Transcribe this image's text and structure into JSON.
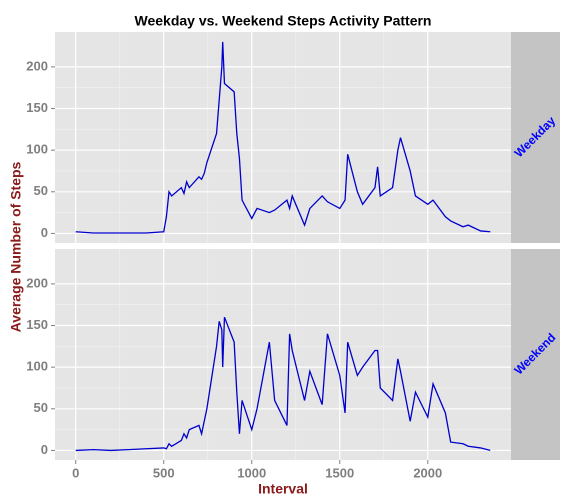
{
  "chart_data": {
    "type": "line",
    "title": "Weekday vs. Weekend Steps Activity Pattern",
    "xlabel": "Interval",
    "ylabel": "Average Number of Steps",
    "x": [
      0,
      100,
      200,
      300,
      400,
      500,
      515,
      530,
      545,
      600,
      615,
      630,
      645,
      700,
      715,
      730,
      745,
      800,
      815,
      830,
      835,
      845,
      900,
      915,
      930,
      945,
      1000,
      1030,
      1100,
      1130,
      1200,
      1215,
      1230,
      1300,
      1330,
      1400,
      1430,
      1500,
      1530,
      1545,
      1600,
      1630,
      1700,
      1715,
      1730,
      1800,
      1830,
      1845,
      1900,
      1930,
      2000,
      2030,
      2100,
      2130,
      2200,
      2230,
      2300,
      2355
    ],
    "series": [
      {
        "name": "Weekday",
        "color": "#0000cd",
        "values": [
          2,
          0.5,
          0.5,
          0.5,
          0.5,
          2,
          20,
          50,
          45,
          55,
          48,
          62,
          55,
          68,
          65,
          72,
          85,
          120,
          160,
          200,
          230,
          180,
          170,
          120,
          90,
          40,
          18,
          30,
          25,
          28,
          40,
          30,
          45,
          10,
          30,
          45,
          38,
          30,
          40,
          95,
          50,
          35,
          55,
          80,
          45,
          55,
          100,
          115,
          75,
          45,
          35,
          40,
          20,
          15,
          8,
          10,
          3,
          2
        ]
      },
      {
        "name": "Weekend",
        "color": "#0000cd",
        "values": [
          0,
          1,
          0,
          1,
          2,
          3,
          2,
          8,
          5,
          12,
          20,
          15,
          25,
          30,
          20,
          35,
          50,
          125,
          155,
          145,
          100,
          160,
          130,
          70,
          20,
          60,
          25,
          50,
          130,
          60,
          30,
          140,
          120,
          60,
          95,
          55,
          140,
          90,
          45,
          130,
          90,
          100,
          120,
          120,
          75,
          60,
          110,
          95,
          35,
          70,
          40,
          80,
          45,
          10,
          8,
          5,
          3,
          0
        ]
      }
    ],
    "xlim": [
      -117.75,
      2472.75
    ],
    "xticks": [
      0,
      500,
      1000,
      1500,
      2000
    ],
    "ylim": [
      -11.5,
      241.9
    ],
    "yticks": [
      0,
      50,
      100,
      150,
      200
    ],
    "grid": true
  }
}
